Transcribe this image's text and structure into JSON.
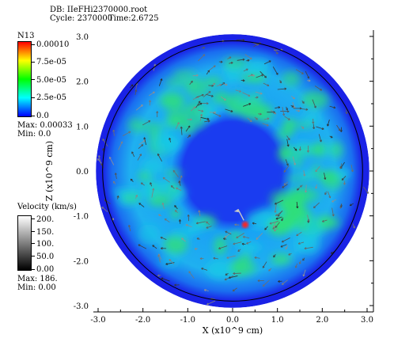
{
  "header": {
    "db": "DB: IIeFHi2370000.root",
    "cycle": "Cycle: 2370000",
    "time": "Time:2.6725"
  },
  "legend_n13": {
    "title": "N13",
    "ticks": [
      "0.00010",
      "7.5e-05",
      "5.0e-05",
      "2.5e-05",
      "0.0"
    ],
    "max": "Max:  0.00033",
    "min": "Min:  0.0"
  },
  "legend_velocity": {
    "title": "Velocity (km/s)",
    "ticks": [
      "200.",
      "150.",
      "100.",
      "50.0",
      "0.00"
    ],
    "max": "Max:  186.",
    "min": "Min:  0.00"
  },
  "colors": {
    "outer_ring": "#1a22e6",
    "shell_fill": "#1a8cff",
    "cyan": "#19c8e6",
    "green": "#2ee07a",
    "hotspot": "#ff2020"
  },
  "chart_data": {
    "type": "heatmap",
    "title": "",
    "xlabel": "X (x10^9 cm)",
    "ylabel": "Z (x10^9 cm)",
    "xlim": [
      -3.2,
      3.2
    ],
    "ylim": [
      -3.2,
      3.2
    ],
    "x_ticks": [
      "-3.0",
      "-2.0",
      "-1.0",
      "0.0",
      "1.0",
      "2.0",
      "3.0"
    ],
    "y_ticks": [
      "3.0",
      "2.0",
      "1.0",
      "0.0",
      "-1.0",
      "-2.0",
      "-3.0"
    ],
    "variable": "N13",
    "vector_field": "Velocity",
    "outer_radius": 3.05,
    "inner_radius": 1.1,
    "boundary_circle_radius": 2.9
  }
}
